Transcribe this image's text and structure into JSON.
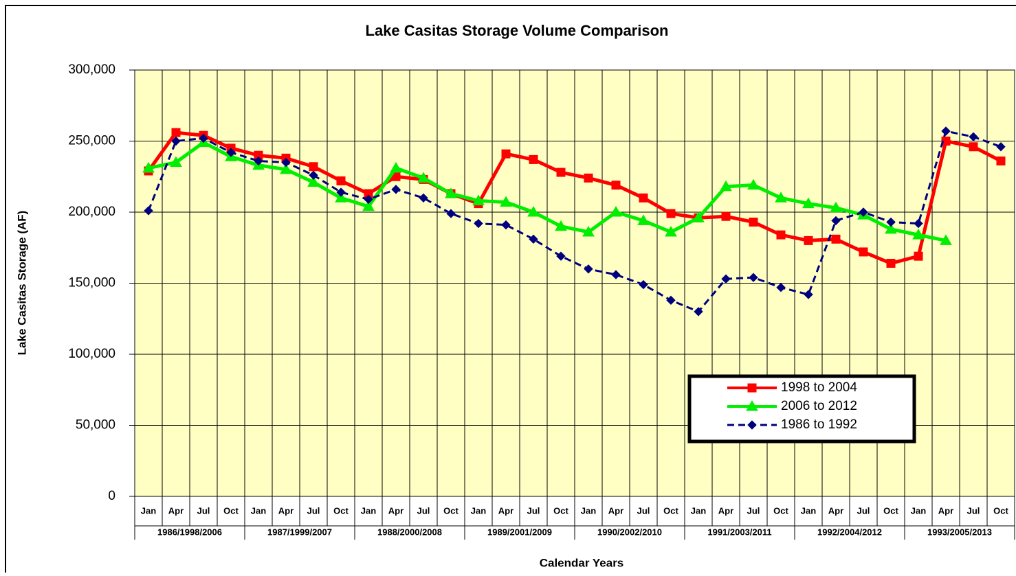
{
  "chart_data": {
    "type": "line",
    "title": "Lake Casitas Storage Volume Comparison",
    "y_label": "Lake Casitas Storage (AF)",
    "x_label": "Calendar Years",
    "categories": [
      "Jan",
      "Apr",
      "Jul",
      "Oct",
      "Jan",
      "Apr",
      "Jul",
      "Oct",
      "Jan",
      "Apr",
      "Jul",
      "Oct",
      "Jan",
      "Apr",
      "Jul",
      "Oct",
      "Jan",
      "Apr",
      "Jul",
      "Oct",
      "Jan",
      "Apr",
      "Jul",
      "Oct",
      "Jan",
      "Apr",
      "Jul",
      "Oct",
      "Jan",
      "Apr",
      "Jul",
      "Oct"
    ],
    "groups": [
      "1986/1998/2006",
      "1987/1999/2007",
      "1988/2000/2008",
      "1989/2001/2009",
      "1990/2002/2010",
      "1991/2003/2011",
      "1992/2004/2012",
      "1993/2005/2013"
    ],
    "ylim": [
      0,
      300000
    ],
    "yticks": [
      0,
      {
        "value": 50000,
        "label": "50,000"
      },
      {
        "value": 100000,
        "label": "100,000"
      },
      {
        "value": 150000,
        "label": "150,000"
      },
      {
        "value": 200000,
        "label": "200,000"
      },
      {
        "value": 250000,
        "label": "250,000"
      },
      {
        "value": 300000,
        "label": "300,000"
      }
    ],
    "grid": true,
    "background": "#ffffc4",
    "legend": "lower right",
    "series": [
      {
        "name": "1998 to 2004",
        "color": "#ff0000",
        "marker": "square",
        "dashed": false,
        "values": [
          229000,
          256000,
          254000,
          245000,
          240000,
          238000,
          232000,
          222000,
          213000,
          225000,
          223000,
          213000,
          206000,
          241000,
          237000,
          228000,
          224000,
          219000,
          210000,
          199000,
          196000,
          197000,
          193000,
          184000,
          180000,
          181000,
          172000,
          164000,
          169000,
          250000,
          246000,
          236000
        ]
      },
      {
        "name": "2006 to 2012",
        "color": "#00ee00",
        "marker": "triangle",
        "dashed": false,
        "values": [
          231000,
          235000,
          249000,
          239000,
          233000,
          230000,
          221000,
          210000,
          204000,
          231000,
          224000,
          213000,
          208000,
          207000,
          200000,
          190000,
          186000,
          200000,
          194000,
          186000,
          196000,
          218000,
          219000,
          210000,
          206000,
          203000,
          198000,
          188000,
          184000,
          180000,
          null,
          null
        ]
      },
      {
        "name": "1986 to 1992",
        "color": "#00007f",
        "marker": "diamond",
        "dashed": true,
        "values": [
          201000,
          250000,
          252000,
          242000,
          236000,
          235000,
          226000,
          214000,
          209000,
          216000,
          210000,
          199000,
          192000,
          191000,
          181000,
          169000,
          160000,
          156000,
          149000,
          138000,
          130000,
          153000,
          154000,
          147000,
          142000,
          194000,
          200000,
          193000,
          192000,
          257000,
          253000,
          246000
        ]
      }
    ]
  }
}
